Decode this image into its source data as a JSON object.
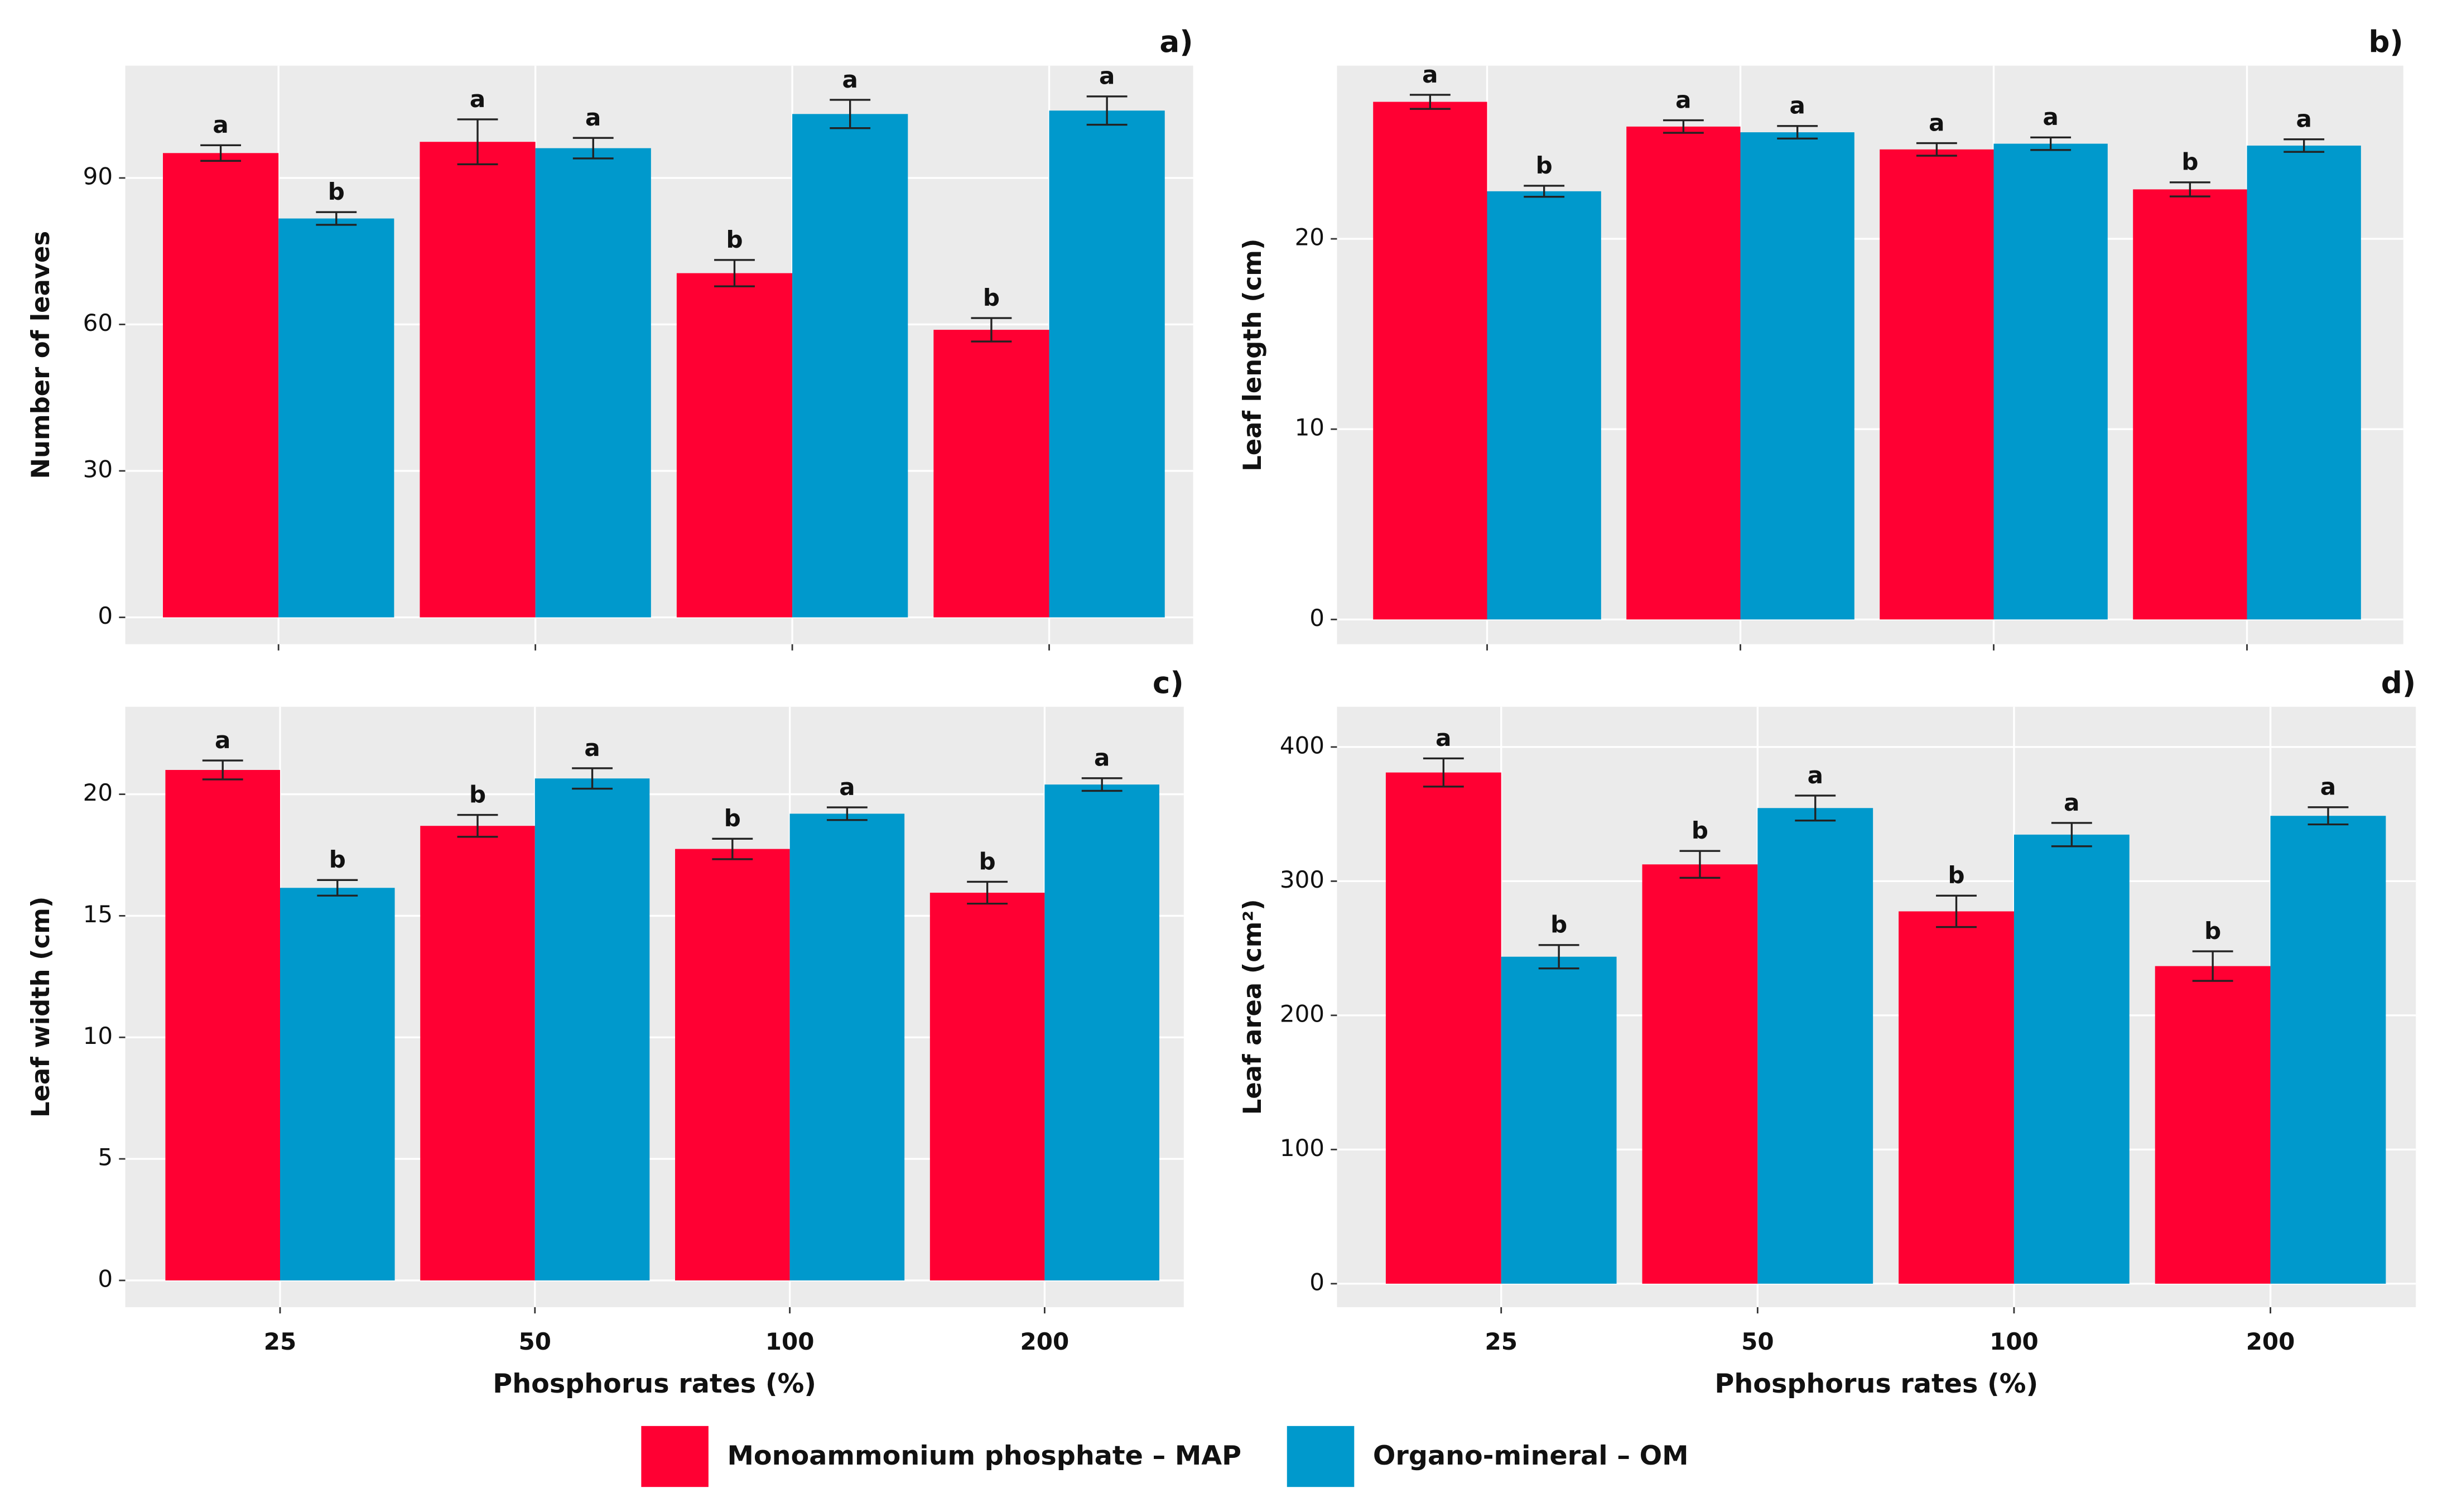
{
  "legend": [
    {
      "name": "Monoammonium phosphate – MAP",
      "color": "#ff0033"
    },
    {
      "name": "Organo-mineral – OM",
      "color": "#0099cc"
    }
  ],
  "chart_data": [
    {
      "type": "bar",
      "panel": "a)",
      "ylabel": "Number of leaves",
      "ylim": [
        -5.5,
        113
      ],
      "yticks": [
        0,
        30,
        60,
        90
      ],
      "grid": true,
      "series": [
        {
          "color": "#ff0033",
          "values": [
            95.1,
            97.4,
            70.5,
            58.9
          ],
          "errors": [
            1.6,
            4.6,
            2.7,
            2.4
          ],
          "letters": [
            "a",
            "a",
            "b",
            "b"
          ]
        },
        {
          "color": "#0099cc",
          "values": [
            81.7,
            96.1,
            103.1,
            103.8
          ],
          "errors": [
            1.3,
            2.1,
            2.9,
            2.9
          ],
          "letters": [
            "b",
            "a",
            "a",
            "a"
          ]
        }
      ]
    },
    {
      "type": "bar",
      "panel": "b)",
      "ylabel": "Leaf length (cm)",
      "ylim": [
        -1.3,
        29.1
      ],
      "yticks": [
        0,
        10,
        20
      ],
      "grid": true,
      "series": [
        {
          "color": "#ff0033",
          "values": [
            27.2,
            25.9,
            24.7,
            22.6
          ],
          "errors": [
            0.37,
            0.33,
            0.33,
            0.37
          ],
          "letters": [
            "a",
            "a",
            "a",
            "b"
          ]
        },
        {
          "color": "#0099cc",
          "values": [
            22.5,
            25.6,
            25.0,
            24.9
          ],
          "errors": [
            0.29,
            0.33,
            0.33,
            0.33
          ],
          "letters": [
            "b",
            "a",
            "a",
            "a"
          ]
        }
      ]
    },
    {
      "type": "bar",
      "panel": "c)",
      "ylabel": "Leaf width (cm)",
      "xlabel": "Phosphorus rates (%)",
      "categories": [
        "25",
        "50",
        "100",
        "200"
      ],
      "ylim": [
        -1.1,
        23.6
      ],
      "yticks": [
        0,
        5,
        10,
        15,
        20
      ],
      "grid": true,
      "series": [
        {
          "color": "#ff0033",
          "values": [
            21.0,
            18.7,
            17.75,
            15.95
          ],
          "errors": [
            0.39,
            0.45,
            0.42,
            0.45
          ],
          "letters": [
            "a",
            "b",
            "b",
            "b"
          ]
        },
        {
          "color": "#0099cc",
          "values": [
            16.15,
            20.65,
            19.2,
            20.4
          ],
          "errors": [
            0.32,
            0.42,
            0.26,
            0.26
          ],
          "letters": [
            "b",
            "a",
            "a",
            "a"
          ]
        }
      ]
    },
    {
      "type": "bar",
      "panel": "d)",
      "ylabel": "Leaf area (cm²)",
      "xlabel": "Phosphorus rates (%)",
      "categories": [
        "25",
        "50",
        "100",
        "200"
      ],
      "ylim": [
        -17.5,
        430
      ],
      "yticks": [
        0,
        100,
        200,
        300,
        400
      ],
      "grid": true,
      "series": [
        {
          "color": "#ff0033",
          "values": [
            381,
            312.5,
            277.5,
            236.7
          ],
          "errors": [
            10.5,
            10,
            11.7,
            11
          ],
          "letters": [
            "a",
            "b",
            "b",
            "b"
          ]
        },
        {
          "color": "#0099cc",
          "values": [
            243.7,
            354.5,
            334.7,
            348.7
          ],
          "errors": [
            8.7,
            9.3,
            8.7,
            6.4
          ],
          "letters": [
            "b",
            "a",
            "a",
            "a"
          ]
        }
      ]
    }
  ]
}
